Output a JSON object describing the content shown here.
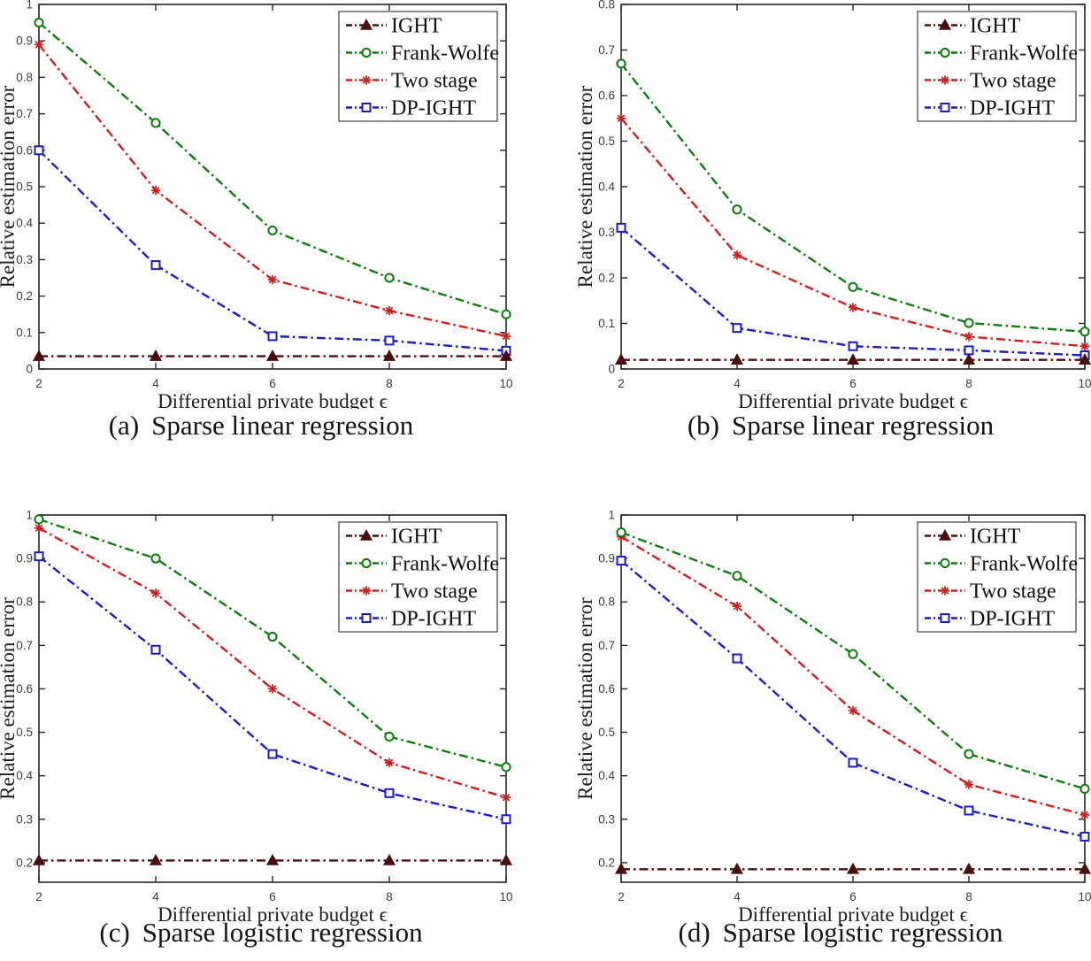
{
  "figure": {
    "background": "#ffffff",
    "axis_color": "#262626",
    "legend_border_color": "#4a4a4a",
    "series_styles": {
      "ight": {
        "color": "#4a0e0e",
        "marker": "triangle-filled"
      },
      "frank_wolfe": {
        "color": "#0c7c0c",
        "marker": "circle-open"
      },
      "two_stage": {
        "color": "#cf1d1d",
        "marker": "asterisk"
      },
      "dp_ight": {
        "color": "#1a1ac8",
        "marker": "square-open"
      }
    }
  },
  "chart_data": [
    {
      "panel": "a",
      "type": "line",
      "caption_label": "(a)",
      "caption_text": "Sparse linear regression",
      "xlabel": "Differential private budget ϵ",
      "ylabel": "Relative estimation error",
      "x": [
        2,
        4,
        6,
        8,
        10
      ],
      "xticks": [
        2,
        4,
        6,
        8,
        10
      ],
      "xlim": [
        2,
        10
      ],
      "ylim": [
        0,
        1
      ],
      "yticks": [
        0,
        0.1,
        0.2,
        0.3,
        0.4,
        0.5,
        0.6,
        0.7,
        0.8,
        0.9,
        1
      ],
      "grid": false,
      "legend_position": "top-right",
      "series": [
        {
          "name": "IGHT",
          "key": "ight",
          "values": [
            0.035,
            0.035,
            0.035,
            0.035,
            0.035
          ]
        },
        {
          "name": "Frank-Wolfe",
          "key": "frank_wolfe",
          "values": [
            0.95,
            0.675,
            0.38,
            0.25,
            0.15
          ]
        },
        {
          "name": "Two stage",
          "key": "two_stage",
          "values": [
            0.89,
            0.49,
            0.245,
            0.16,
            0.09
          ]
        },
        {
          "name": "DP-IGHT",
          "key": "dp_ight",
          "values": [
            0.6,
            0.285,
            0.09,
            0.078,
            0.05
          ]
        }
      ]
    },
    {
      "panel": "b",
      "type": "line",
      "caption_label": "(b)",
      "caption_text": "Sparse linear regression",
      "xlabel": "Differential private budget ϵ",
      "ylabel": "Relative estimation error",
      "x": [
        2,
        4,
        6,
        8,
        10
      ],
      "xticks": [
        2,
        4,
        6,
        8,
        10
      ],
      "xlim": [
        2,
        10
      ],
      "ylim": [
        0,
        0.8
      ],
      "yticks": [
        0,
        0.1,
        0.2,
        0.3,
        0.4,
        0.5,
        0.6,
        0.7,
        0.8
      ],
      "grid": false,
      "legend_position": "top-right",
      "series": [
        {
          "name": "IGHT",
          "key": "ight",
          "values": [
            0.02,
            0.02,
            0.02,
            0.02,
            0.02
          ]
        },
        {
          "name": "Frank-Wolfe",
          "key": "frank_wolfe",
          "values": [
            0.67,
            0.35,
            0.18,
            0.101,
            0.082
          ]
        },
        {
          "name": "Two stage",
          "key": "two_stage",
          "values": [
            0.55,
            0.25,
            0.135,
            0.071,
            0.05
          ]
        },
        {
          "name": "DP-IGHT",
          "key": "dp_ight",
          "values": [
            0.31,
            0.09,
            0.05,
            0.041,
            0.03
          ]
        }
      ]
    },
    {
      "panel": "c",
      "type": "line",
      "caption_label": "(c)",
      "caption_text": "Sparse logistic regression",
      "xlabel": "Differential private budget ϵ",
      "ylabel": "Relative estimation error",
      "x": [
        2,
        4,
        6,
        8,
        10
      ],
      "xticks": [
        2,
        4,
        6,
        8,
        10
      ],
      "xlim": [
        2,
        10
      ],
      "ylim": [
        0.155,
        1
      ],
      "yticks": [
        0.2,
        0.3,
        0.4,
        0.5,
        0.6,
        0.7,
        0.8,
        0.9,
        1
      ],
      "grid": false,
      "legend_position": "top-right",
      "series": [
        {
          "name": "IGHT",
          "key": "ight",
          "values": [
            0.205,
            0.205,
            0.205,
            0.205,
            0.205
          ]
        },
        {
          "name": "Frank-Wolfe",
          "key": "frank_wolfe",
          "values": [
            0.99,
            0.9,
            0.72,
            0.49,
            0.42
          ]
        },
        {
          "name": "Two stage",
          "key": "two_stage",
          "values": [
            0.97,
            0.82,
            0.6,
            0.43,
            0.35
          ]
        },
        {
          "name": "DP-IGHT",
          "key": "dp_ight",
          "values": [
            0.905,
            0.69,
            0.45,
            0.36,
            0.3
          ]
        }
      ]
    },
    {
      "panel": "d",
      "type": "line",
      "caption_label": "(d)",
      "caption_text": "Sparse logistic regression",
      "xlabel": "Differential private budget ϵ",
      "ylabel": "Relative estimation error",
      "x": [
        2,
        4,
        6,
        8,
        10
      ],
      "xticks": [
        2,
        4,
        6,
        8,
        10
      ],
      "xlim": [
        2,
        10
      ],
      "ylim": [
        0.155,
        1
      ],
      "yticks": [
        0.2,
        0.3,
        0.4,
        0.5,
        0.6,
        0.7,
        0.8,
        0.9,
        1
      ],
      "grid": false,
      "legend_position": "top-right",
      "series": [
        {
          "name": "IGHT",
          "key": "ight",
          "values": [
            0.185,
            0.185,
            0.185,
            0.185,
            0.185
          ]
        },
        {
          "name": "Frank-Wolfe",
          "key": "frank_wolfe",
          "values": [
            0.96,
            0.86,
            0.68,
            0.45,
            0.37
          ]
        },
        {
          "name": "Two stage",
          "key": "two_stage",
          "values": [
            0.95,
            0.79,
            0.55,
            0.38,
            0.31
          ]
        },
        {
          "name": "DP-IGHT",
          "key": "dp_ight",
          "values": [
            0.895,
            0.67,
            0.43,
            0.32,
            0.26
          ]
        }
      ]
    }
  ]
}
